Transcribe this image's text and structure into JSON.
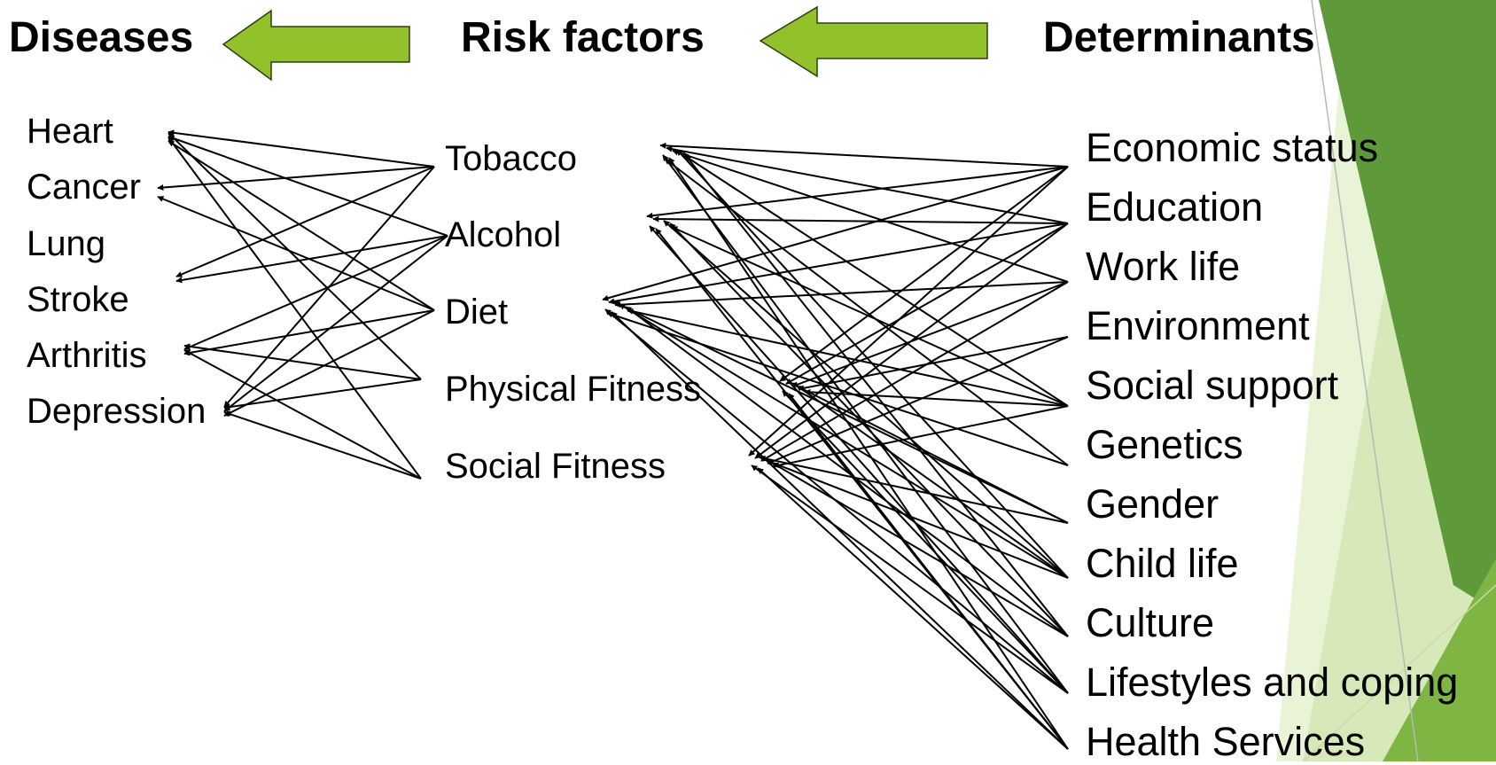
{
  "headers": {
    "diseases": "Diseases",
    "risk_factors": "Risk factors",
    "determinants": "Determinants"
  },
  "diseases": [
    "Heart",
    "Cancer",
    "Lung",
    "Stroke",
    "Arthritis",
    "Depression"
  ],
  "risk_factors": [
    "Tobacco",
    "Alcohol",
    "Diet",
    "Physical Fitness",
    "Social Fitness"
  ],
  "determinants": [
    "Economic status",
    "Education",
    "Work life",
    "Environment",
    "Social support",
    "Genetics",
    "Gender",
    "Child life",
    "Culture",
    "Lifestyles and coping",
    "Health Services"
  ],
  "colors": {
    "arrow_fill": "#92c12b",
    "theme_dark": "#5e9a3a",
    "theme_mid": "#7fb542",
    "theme_light": "#d7e9b8",
    "theme_pale": "#e9f3d6",
    "text": "#000000"
  },
  "links_risk_to_disease": [
    [
      0,
      0
    ],
    [
      0,
      1
    ],
    [
      0,
      3
    ],
    [
      0,
      5
    ],
    [
      1,
      0
    ],
    [
      1,
      3
    ],
    [
      1,
      4
    ],
    [
      1,
      5
    ],
    [
      2,
      0
    ],
    [
      2,
      1
    ],
    [
      2,
      4
    ],
    [
      2,
      5
    ],
    [
      3,
      0
    ],
    [
      3,
      4
    ],
    [
      3,
      5
    ],
    [
      4,
      0
    ],
    [
      4,
      4
    ],
    [
      4,
      5
    ]
  ],
  "links_determinant_to_risk": [
    [
      0,
      0
    ],
    [
      0,
      1
    ],
    [
      0,
      2
    ],
    [
      0,
      3
    ],
    [
      0,
      4
    ],
    [
      1,
      0
    ],
    [
      1,
      1
    ],
    [
      1,
      2
    ],
    [
      1,
      3
    ],
    [
      1,
      4
    ],
    [
      2,
      0
    ],
    [
      2,
      2
    ],
    [
      2,
      3
    ],
    [
      2,
      4
    ],
    [
      3,
      3
    ],
    [
      3,
      4
    ],
    [
      4,
      0
    ],
    [
      4,
      1
    ],
    [
      4,
      2
    ],
    [
      4,
      3
    ],
    [
      4,
      4
    ],
    [
      5,
      0
    ],
    [
      5,
      2
    ],
    [
      6,
      2
    ],
    [
      6,
      3
    ],
    [
      6,
      4
    ],
    [
      7,
      0
    ],
    [
      7,
      1
    ],
    [
      7,
      2
    ],
    [
      7,
      3
    ],
    [
      7,
      4
    ],
    [
      8,
      0
    ],
    [
      8,
      1
    ],
    [
      8,
      2
    ],
    [
      8,
      4
    ],
    [
      9,
      0
    ],
    [
      9,
      1
    ],
    [
      9,
      2
    ],
    [
      9,
      3
    ],
    [
      9,
      4
    ],
    [
      10,
      0
    ],
    [
      10,
      1
    ],
    [
      10,
      2
    ],
    [
      10,
      3
    ],
    [
      10,
      4
    ]
  ]
}
